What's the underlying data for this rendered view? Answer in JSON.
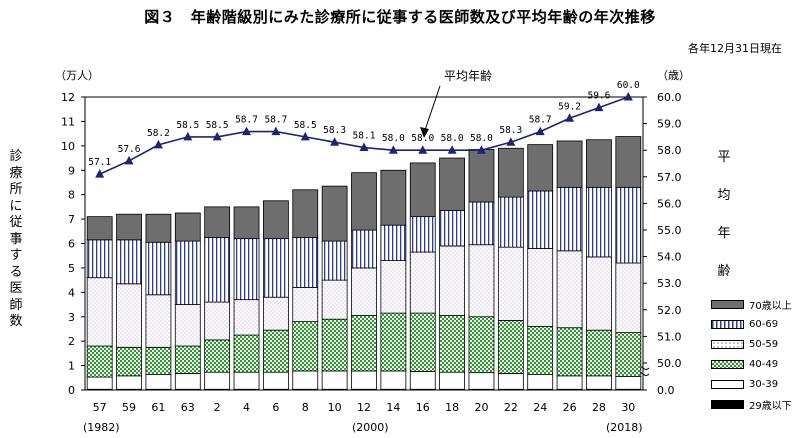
{
  "title": "図３　年齢階級別にみた診療所に従事する医師数及び平均年齢の年次推移",
  "note": "各年12月31日現在",
  "left_axis_title": "診療所に従事する医師数",
  "left_unit": "（万人）",
  "right_axis_title": "平均年齢",
  "right_unit": "（歳）",
  "annotation": "平均年齢",
  "year_sub_labels": [
    "(1982)",
    "(2000)",
    "(2018)"
  ],
  "colors": {
    "c70": "#6e6e6e",
    "c60": "vertical-stripe-blue",
    "c50": "#ffffff-dots",
    "c40": "green-check",
    "c30": "#ffffff",
    "c29": "#000000",
    "line": "#1a237e"
  },
  "chart_data": [
    {
      "type": "bar",
      "stacked": true,
      "categories": [
        "57",
        "59",
        "61",
        "63",
        "2",
        "4",
        "6",
        "8",
        "10",
        "12",
        "14",
        "16",
        "18",
        "20",
        "22",
        "24",
        "26",
        "28",
        "30"
      ],
      "ylim": [
        0,
        12
      ],
      "yticks": [
        0,
        1,
        2,
        3,
        4,
        5,
        6,
        7,
        8,
        9,
        10,
        11,
        12
      ],
      "series": [
        {
          "name": "29歳以下",
          "values": [
            0.03,
            0.03,
            0.03,
            0.03,
            0.03,
            0.03,
            0.03,
            0.03,
            0.03,
            0.03,
            0.03,
            0.03,
            0.03,
            0.03,
            0.03,
            0.03,
            0.03,
            0.03,
            0.03
          ]
        },
        {
          "name": "30-39",
          "values": [
            0.5,
            0.55,
            0.6,
            0.65,
            0.7,
            0.7,
            0.7,
            0.75,
            0.75,
            0.75,
            0.75,
            0.73,
            0.7,
            0.68,
            0.65,
            0.6,
            0.55,
            0.55,
            0.52
          ]
        },
        {
          "name": "40-49",
          "values": [
            1.27,
            1.17,
            1.12,
            1.12,
            1.32,
            1.52,
            1.72,
            2.02,
            2.12,
            2.27,
            2.37,
            2.39,
            2.32,
            2.29,
            2.17,
            1.97,
            1.97,
            1.87,
            1.8
          ]
        },
        {
          "name": "50-59",
          "values": [
            2.8,
            2.6,
            2.15,
            1.7,
            1.55,
            1.45,
            1.35,
            1.4,
            1.6,
            1.95,
            2.15,
            2.5,
            2.85,
            2.95,
            3.0,
            3.2,
            3.15,
            3.0,
            2.85
          ]
        },
        {
          "name": "60-69",
          "values": [
            1.55,
            1.8,
            2.15,
            2.6,
            2.65,
            2.5,
            2.4,
            2.05,
            1.6,
            1.55,
            1.45,
            1.45,
            1.45,
            1.75,
            2.05,
            2.35,
            2.6,
            2.85,
            3.1
          ]
        },
        {
          "name": "70歳以上",
          "values": [
            0.95,
            1.05,
            1.15,
            1.15,
            1.25,
            1.3,
            1.55,
            1.95,
            2.25,
            2.35,
            2.25,
            2.2,
            2.15,
            2.15,
            2.0,
            1.9,
            1.9,
            1.95,
            2.08
          ]
        }
      ]
    },
    {
      "type": "line",
      "name": "平均年齢",
      "categories": [
        "57",
        "59",
        "61",
        "63",
        "2",
        "4",
        "6",
        "8",
        "10",
        "12",
        "14",
        "16",
        "18",
        "20",
        "22",
        "24",
        "26",
        "28",
        "30"
      ],
      "values": [
        57.1,
        57.6,
        58.2,
        58.5,
        58.5,
        58.7,
        58.7,
        58.5,
        58.3,
        58.1,
        58.0,
        58.0,
        58.0,
        58.0,
        58.3,
        58.7,
        59.2,
        59.6,
        60.0
      ],
      "labels": [
        "57.1",
        "57.6",
        "58.2",
        "58.5",
        "58.5",
        "58.7",
        "58.7",
        "58.5",
        "58.3",
        "58.1",
        "58.0",
        "58.0",
        "58.0",
        "58.0",
        "58.3",
        "58.7",
        "59.2",
        "59.6",
        "60.0"
      ],
      "ylim": [
        0,
        60
      ],
      "yticks": [
        "0.0",
        "50.0",
        "51.0",
        "52.0",
        "53.0",
        "54.0",
        "55.0",
        "56.0",
        "57.0",
        "58.0",
        "59.0",
        "60.0"
      ]
    }
  ],
  "legend": [
    {
      "label": "70歳以上",
      "key": "70"
    },
    {
      "label": "60-69",
      "key": "60"
    },
    {
      "label": "50-59",
      "key": "50"
    },
    {
      "label": "40-49",
      "key": "40"
    },
    {
      "label": "30-39",
      "key": "30"
    },
    {
      "label": "29歳以下",
      "key": "29"
    }
  ]
}
